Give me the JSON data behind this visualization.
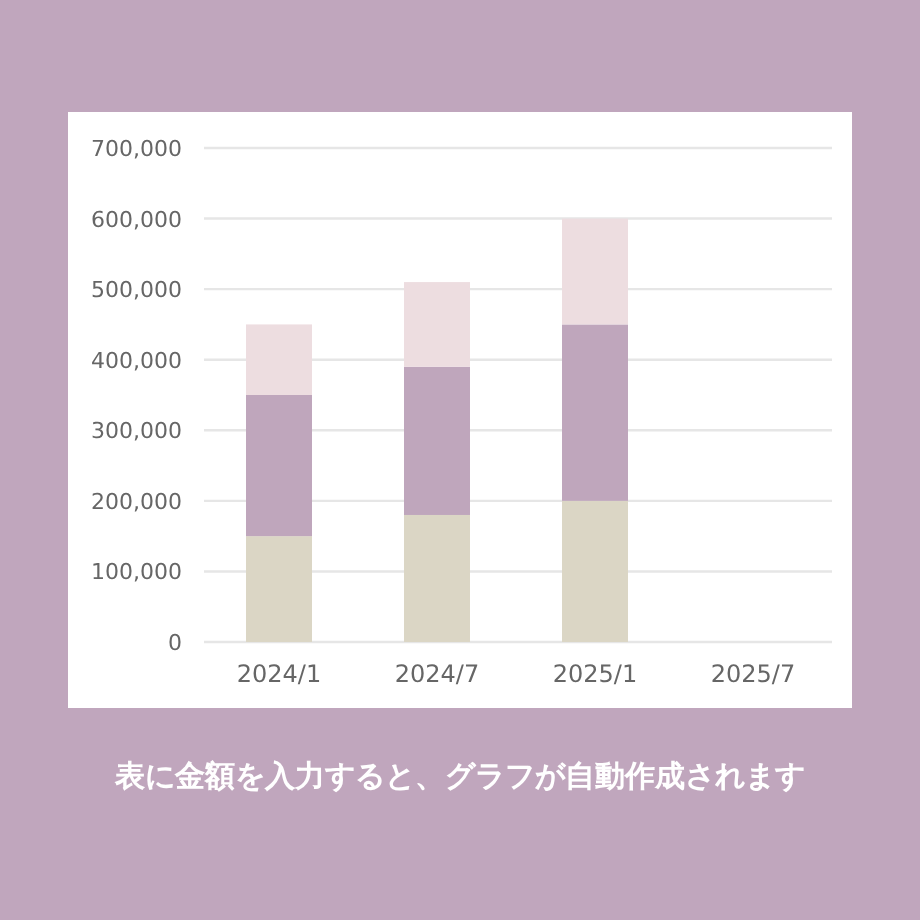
{
  "chart_data": {
    "type": "bar",
    "stacked": true,
    "categories": [
      "2024/1",
      "2024/7",
      "2025/1",
      "2025/7"
    ],
    "series": [
      {
        "color": "#dbd6c5",
        "values": [
          150000,
          180000,
          200000,
          null
        ]
      },
      {
        "color": "#bfa6bc",
        "values": [
          200000,
          210000,
          250000,
          null
        ]
      },
      {
        "color": "#eddde0",
        "values": [
          100000,
          120000,
          150000,
          null
        ]
      }
    ],
    "ylim": [
      0,
      700000
    ],
    "yticks": [
      {
        "value": 0,
        "label": "0"
      },
      {
        "value": 100000,
        "label": "100,000"
      },
      {
        "value": 200000,
        "label": "200,000"
      },
      {
        "value": 300000,
        "label": "300,000"
      },
      {
        "value": 400000,
        "label": "400,000"
      },
      {
        "value": 500000,
        "label": "500,000"
      },
      {
        "value": 600000,
        "label": "600,000"
      },
      {
        "value": 700000,
        "label": "700,000"
      }
    ],
    "grid": "y",
    "annotations": [
      "表に金額を入力すると、グラフが自動作成されます"
    ]
  }
}
